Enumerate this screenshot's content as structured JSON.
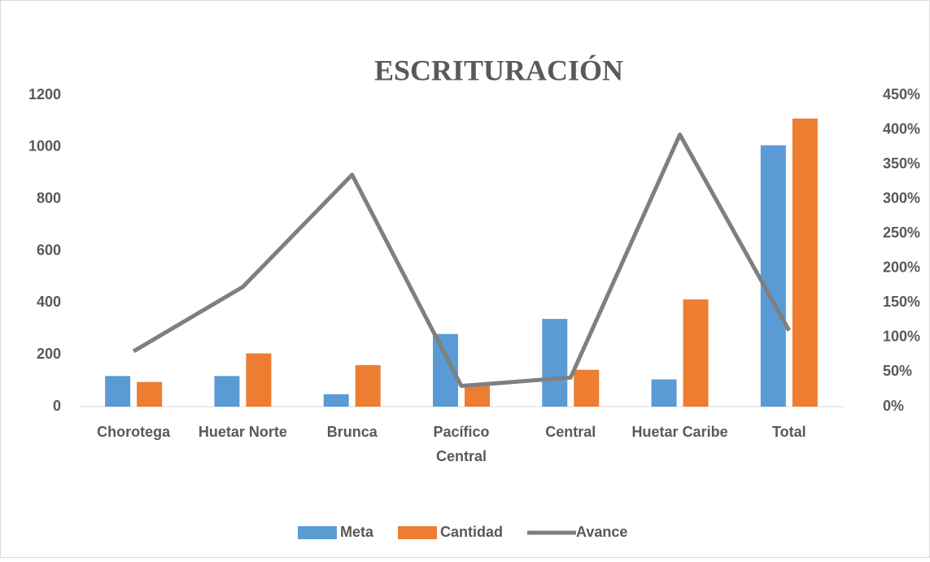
{
  "chart_data": {
    "type": "bar-line",
    "title": "ESCRITURACIÓN",
    "categories": [
      "Chorotega",
      "Huetar Norte",
      "Brunca",
      "Pacífico Central",
      "Central",
      "Huetar Caribe",
      "Total"
    ],
    "series": [
      {
        "name": "Meta",
        "color": "#5b9bd5",
        "type": "bar",
        "values": [
          118,
          118,
          48,
          280,
          338,
          105,
          1007
        ]
      },
      {
        "name": "Cantidad",
        "color": "#ed7d31",
        "type": "bar",
        "values": [
          95,
          205,
          160,
          85,
          142,
          413,
          1110
        ]
      },
      {
        "name": "Avance",
        "color": "#7f7f7f",
        "type": "line",
        "axis": "y2",
        "values": [
          80,
          173,
          335,
          30,
          42,
          393,
          110
        ]
      }
    ],
    "ylim": [
      0,
      1200
    ],
    "yticks": [
      0,
      200,
      400,
      600,
      800,
      1000,
      1200
    ],
    "y2lim": [
      0,
      450
    ],
    "y2ticks": [
      {
        "value": 0,
        "label": "0%"
      },
      {
        "value": 50,
        "label": "50%"
      },
      {
        "value": 100,
        "label": "100%"
      },
      {
        "value": 150,
        "label": "150%"
      },
      {
        "value": 200,
        "label": "200%"
      },
      {
        "value": 250,
        "label": "250%"
      },
      {
        "value": 300,
        "label": "300%"
      },
      {
        "value": 350,
        "label": "350%"
      },
      {
        "value": 400,
        "label": "400%"
      },
      {
        "value": 450,
        "label": "450%"
      }
    ],
    "legend": "bottom"
  }
}
